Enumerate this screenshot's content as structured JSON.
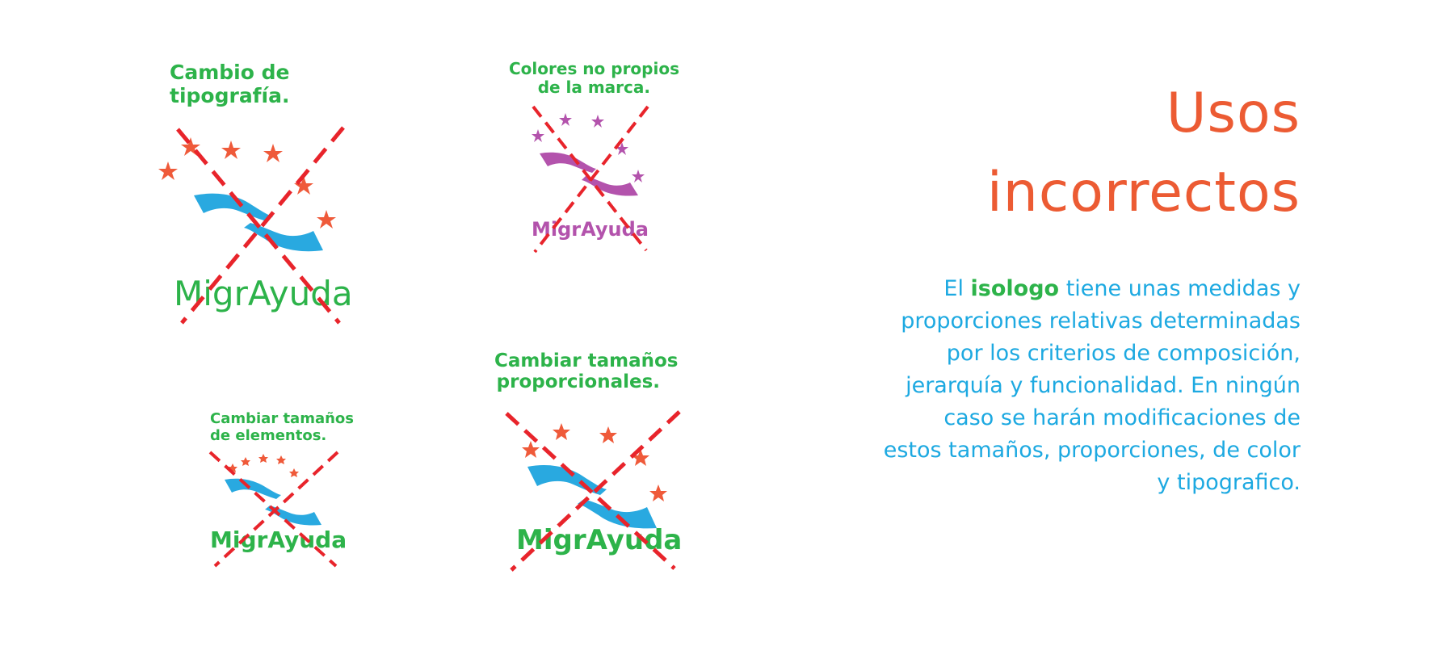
{
  "colors": {
    "heading": "#ec5b33",
    "body_text": "#1da9e1",
    "highlight": "#2db34a",
    "caption": "#2db34a",
    "cross": "#e8242b",
    "hands_blue": "#29a9e0",
    "stars_orange": "#ef5a3a",
    "wordmark_green": "#2db34a",
    "alt_purple": "#b353ac"
  },
  "heading": {
    "line1": "Usos",
    "line2": "incorrectos"
  },
  "body": {
    "part1": "El",
    "highlight": "isologo",
    "part2": "tiene unas medidas y proporciones relativas determinadas por los criterios de composición, jerarquía y funcionalidad. En ningún caso se harán modificaciones de estos tamaños, proporciones, de color y tipografico."
  },
  "examples": [
    {
      "caption_line1": "Cambio de",
      "caption_line2": "tipografía.",
      "wordmark": "MigrAyuda"
    },
    {
      "caption_line1": "Colores no propios",
      "caption_line2": "de la marca.",
      "wordmark": "MigrAyuda"
    },
    {
      "caption_line1": "Cambiar tamaños",
      "caption_line2": "de elementos.",
      "wordmark": "MigrAyuda"
    },
    {
      "caption_line1": "Cambiar tamaños",
      "caption_line2": "proporcionales.",
      "wordmark": "MigrAyuda"
    }
  ]
}
